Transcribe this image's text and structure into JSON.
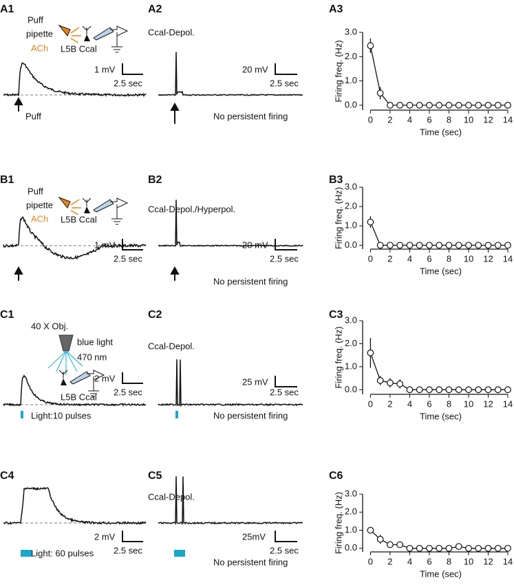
{
  "labels": [
    "A1",
    "A2",
    "A3",
    "B1",
    "B2",
    "B3",
    "C1",
    "C2",
    "C3",
    "C4",
    "C5",
    "C6"
  ],
  "texts": {
    "a1": [
      "Puff",
      "pipette",
      "ACh",
      "L5B Ccal",
      "1 mV",
      "2.5 sec",
      "Puff"
    ],
    "a2": [
      "Ccal-Depol.",
      "20 mV",
      "2.5 sec",
      "No persistent firing"
    ],
    "b1": [
      "Puff",
      "pipette",
      "ACh",
      "L5B Ccal",
      "1 mV",
      "2.5 sec"
    ],
    "b2": [
      "Ccal-Depol./Hyperpol.",
      "20 mV",
      "2.5 sec",
      "No persistent firing"
    ],
    "c1": [
      "40 X Obj.",
      "blue light",
      "470 nm",
      "L5B Ccal",
      "2 mV",
      "2.5 sec",
      "Light:10 pulses"
    ],
    "c2": [
      "Ccal-Depol.",
      "25 mV",
      "2.5 sec",
      "No persistent firing"
    ],
    "c4": [
      "2 mV",
      "2.5 sec",
      "Light: 60 pulses"
    ],
    "c5": [
      "Ccal-Depol.",
      "25mV",
      "2.5 sec",
      "No persistent firing"
    ]
  },
  "chart_data": [
    {
      "type": "line",
      "xlabel": "Time (sec)",
      "ylabel": "Firing freq. (Hz)",
      "x": [
        0,
        1,
        2,
        3,
        4,
        5,
        6,
        7,
        8,
        9,
        10,
        11,
        12,
        13,
        14
      ],
      "values": [
        2.45,
        0.5,
        0,
        0,
        0,
        0,
        0,
        0,
        0,
        0,
        0,
        0,
        0,
        0,
        0
      ],
      "errors": [
        0.3,
        0.25,
        0,
        0,
        0,
        0,
        0,
        0,
        0,
        0,
        0,
        0,
        0,
        0,
        0
      ],
      "color": "#111111",
      "marker_fill": "#ffffff",
      "xlim": [
        -0.8,
        14
      ],
      "ylim": [
        -0.2,
        3.0
      ],
      "xticks": [
        0,
        2,
        4,
        6,
        8,
        10,
        12,
        14
      ],
      "yticks": [
        {
          "value": 0,
          "label": "0.0"
        },
        {
          "value": 1,
          "label": "1.0"
        },
        {
          "value": 2,
          "label": "2.0"
        },
        {
          "value": 3,
          "label": "3.0"
        }
      ]
    },
    {
      "type": "line",
      "xlabel": "Time (sec)",
      "ylabel": "Firing freq. (Hz)",
      "x": [
        0,
        1,
        2,
        3,
        4,
        5,
        6,
        7,
        8,
        9,
        10,
        11,
        12,
        13,
        14
      ],
      "values": [
        1.2,
        0,
        0,
        0,
        0,
        0,
        0,
        0,
        0,
        0,
        0,
        0,
        0,
        0,
        0
      ],
      "errors": [
        0.3,
        0,
        0,
        0,
        0,
        0,
        0,
        0,
        0,
        0,
        0,
        0,
        0,
        0,
        0
      ],
      "color": "#111111",
      "marker_fill": "#ffffff",
      "xlim": [
        -0.8,
        14
      ],
      "ylim": [
        -0.2,
        3.0
      ],
      "xticks": [
        0,
        2,
        4,
        6,
        8,
        10,
        12,
        14
      ],
      "yticks": [
        {
          "value": 0,
          "label": "0.0"
        },
        {
          "value": 1,
          "label": "1.0"
        },
        {
          "value": 2,
          "label": "2.0"
        },
        {
          "value": 3,
          "label": "3.0"
        }
      ]
    },
    {
      "type": "line",
      "xlabel": "Time (sec)",
      "ylabel": "Firing freq. (Hz)",
      "x": [
        0,
        1,
        2,
        3,
        4,
        5,
        6,
        7,
        8,
        9,
        10,
        11,
        12,
        13,
        14
      ],
      "values": [
        1.6,
        0.4,
        0.3,
        0.25,
        0,
        0,
        0,
        0,
        0,
        0,
        0,
        0,
        0,
        0,
        0
      ],
      "errors": [
        0.65,
        0.2,
        0.2,
        0.2,
        0,
        0,
        0,
        0,
        0,
        0,
        0,
        0,
        0,
        0,
        0
      ],
      "color": "#111111",
      "marker_fill": "#ffffff",
      "xlim": [
        -0.8,
        14
      ],
      "ylim": [
        -0.2,
        3.0
      ],
      "xticks": [
        0,
        2,
        4,
        6,
        8,
        10,
        12,
        14
      ],
      "yticks": [
        {
          "value": 0,
          "label": "0.0"
        },
        {
          "value": 1,
          "label": "1.0"
        },
        {
          "value": 2,
          "label": "2.0"
        },
        {
          "value": 3,
          "label": "3.0"
        }
      ]
    },
    {
      "type": "line",
      "xlabel": "Time (sec)",
      "ylabel": "Firing freq. (Hz)",
      "x": [
        0,
        1,
        2,
        3,
        4,
        5,
        6,
        7,
        8,
        9,
        10,
        11,
        12,
        13,
        14
      ],
      "values": [
        1.0,
        0.5,
        0.2,
        0.2,
        0,
        0,
        0,
        0,
        0,
        0.1,
        0,
        0,
        0,
        0,
        0
      ],
      "errors": [
        0.15,
        0.25,
        0.1,
        0.1,
        0,
        0,
        0,
        0,
        0,
        0,
        0,
        0,
        0,
        0,
        0
      ],
      "color": "#111111",
      "marker_fill": "#ffffff",
      "xlim": [
        -0.8,
        14
      ],
      "ylim": [
        -0.2,
        3.0
      ],
      "xticks": [
        0,
        2,
        4,
        6,
        8,
        10,
        12,
        14
      ],
      "yticks": [
        {
          "value": 0,
          "label": "0.0"
        },
        {
          "value": 1,
          "label": "1.0"
        },
        {
          "value": 2,
          "label": "2.0"
        },
        {
          "value": 3,
          "label": "3.0"
        }
      ]
    }
  ]
}
